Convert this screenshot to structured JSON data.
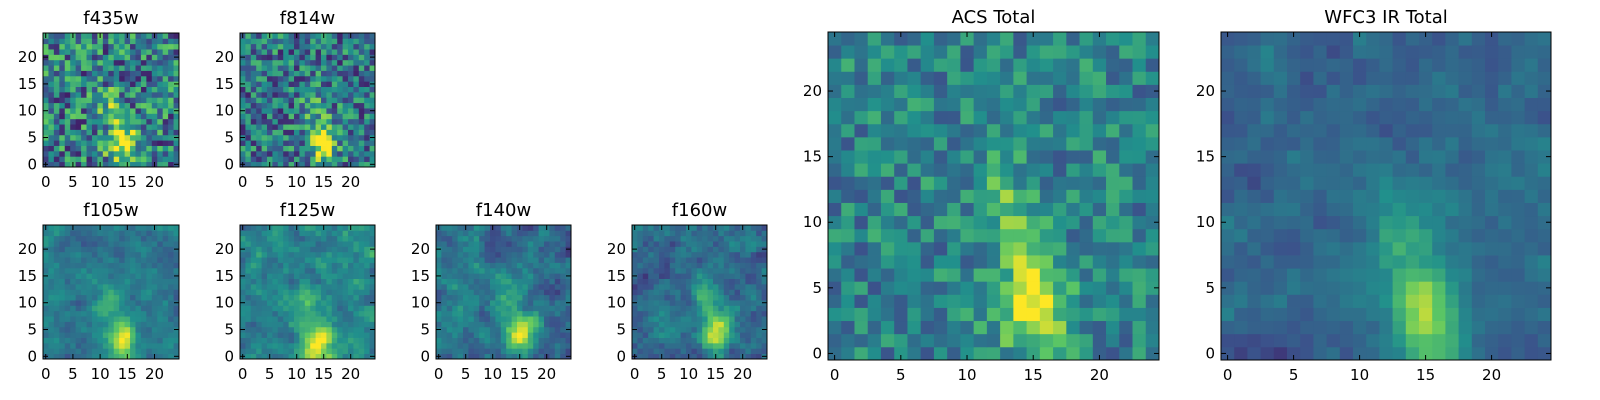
{
  "figure": {
    "colormap": "viridis",
    "colormap_stops": [
      "#440154",
      "#3b528b",
      "#21908c",
      "#5dc863",
      "#fde725"
    ]
  },
  "chart_data": [
    {
      "type": "heatmap",
      "title": "f435w",
      "grid": false,
      "xlim": [
        0,
        24
      ],
      "ylim": [
        0,
        24
      ],
      "x_ticks": [
        0,
        5,
        10,
        15,
        20
      ],
      "y_ticks": [
        0,
        5,
        10,
        15,
        20
      ],
      "x_tick_labels": [
        "0",
        "5",
        "10",
        "15",
        "20"
      ],
      "y_tick_labels": [
        "0",
        "5",
        "10",
        "15",
        "20"
      ],
      "peak": [
        14,
        4
      ],
      "streak": true,
      "noise": 0.34,
      "smooth": 0,
      "bg": 0.43,
      "seed": 11
    },
    {
      "type": "heatmap",
      "title": "f814w",
      "grid": false,
      "xlim": [
        0,
        24
      ],
      "ylim": [
        0,
        24
      ],
      "x_ticks": [
        0,
        5,
        10,
        15,
        20
      ],
      "y_ticks": [
        0,
        5,
        10,
        15,
        20
      ],
      "x_tick_labels": [
        "0",
        "5",
        "10",
        "15",
        "20"
      ],
      "y_tick_labels": [
        "0",
        "5",
        "10",
        "15",
        "20"
      ],
      "peak": [
        15,
        4
      ],
      "streak": true,
      "noise": 0.3,
      "smooth": 0,
      "bg": 0.4,
      "seed": 23
    },
    {
      "type": "heatmap",
      "title": "f105w",
      "grid": false,
      "xlim": [
        0,
        24
      ],
      "ylim": [
        0,
        24
      ],
      "x_ticks": [
        0,
        5,
        10,
        15,
        20
      ],
      "y_ticks": [
        0,
        5,
        10,
        15,
        20
      ],
      "x_tick_labels": [
        "0",
        "5",
        "10",
        "15",
        "20"
      ],
      "y_tick_labels": [
        "0",
        "5",
        "10",
        "15",
        "20"
      ],
      "peak": [
        14,
        3
      ],
      "streak": true,
      "noise": 0.22,
      "smooth": 1,
      "bg": 0.4,
      "seed": 37
    },
    {
      "type": "heatmap",
      "title": "f125w",
      "grid": false,
      "xlim": [
        0,
        24
      ],
      "ylim": [
        0,
        24
      ],
      "x_ticks": [
        0,
        5,
        10,
        15,
        20
      ],
      "y_ticks": [
        0,
        5,
        10,
        15,
        20
      ],
      "x_tick_labels": [
        "0",
        "5",
        "10",
        "15",
        "20"
      ],
      "y_tick_labels": [
        "0",
        "5",
        "10",
        "15",
        "20"
      ],
      "peak": [
        14,
        3
      ],
      "streak": true,
      "noise": 0.3,
      "smooth": 1,
      "bg": 0.45,
      "seed": 41
    },
    {
      "type": "heatmap",
      "title": "f140w",
      "grid": false,
      "xlim": [
        0,
        24
      ],
      "ylim": [
        0,
        24
      ],
      "x_ticks": [
        0,
        5,
        10,
        15,
        20
      ],
      "y_ticks": [
        0,
        5,
        10,
        15,
        20
      ],
      "x_tick_labels": [
        "0",
        "5",
        "10",
        "15",
        "20"
      ],
      "y_tick_labels": [
        "0",
        "5",
        "10",
        "15",
        "20"
      ],
      "peak": [
        15,
        4
      ],
      "streak": true,
      "noise": 0.3,
      "smooth": 1,
      "bg": 0.38,
      "seed": 53
    },
    {
      "type": "heatmap",
      "title": "f160w",
      "grid": false,
      "xlim": [
        0,
        24
      ],
      "ylim": [
        0,
        24
      ],
      "x_ticks": [
        0,
        5,
        10,
        15,
        20
      ],
      "y_ticks": [
        0,
        5,
        10,
        15,
        20
      ],
      "x_tick_labels": [
        "0",
        "5",
        "10",
        "15",
        "20"
      ],
      "y_tick_labels": [
        "0",
        "5",
        "10",
        "15",
        "20"
      ],
      "peak": [
        15,
        5
      ],
      "streak": true,
      "noise": 0.28,
      "smooth": 1,
      "bg": 0.36,
      "seed": 67
    },
    {
      "type": "heatmap",
      "title": "ACS Total",
      "grid": false,
      "xlim": [
        0,
        24
      ],
      "ylim": [
        0,
        24
      ],
      "x_ticks": [
        0,
        5,
        10,
        15,
        20
      ],
      "y_ticks": [
        0,
        5,
        10,
        15,
        20
      ],
      "x_tick_labels": [
        "0",
        "5",
        "10",
        "15",
        "20"
      ],
      "y_tick_labels": [
        "0",
        "5",
        "10",
        "15",
        "20"
      ],
      "peak": [
        15,
        4
      ],
      "streak": true,
      "noise": 0.2,
      "smooth": 0,
      "bg": 0.45,
      "seed": 79
    },
    {
      "type": "heatmap",
      "title": "WFC3 IR Total",
      "grid": false,
      "xlim": [
        0,
        24
      ],
      "ylim": [
        0,
        24
      ],
      "x_ticks": [
        0,
        5,
        10,
        15,
        20
      ],
      "y_ticks": [
        0,
        5,
        10,
        15,
        20
      ],
      "x_tick_labels": [
        "0",
        "5",
        "10",
        "15",
        "20"
      ],
      "y_tick_labels": [
        "0",
        "5",
        "10",
        "15",
        "20"
      ],
      "peak": [
        15,
        3
      ],
      "streak": true,
      "noise": 0.16,
      "smooth": 1,
      "bg": 0.33,
      "seed": 97
    }
  ]
}
